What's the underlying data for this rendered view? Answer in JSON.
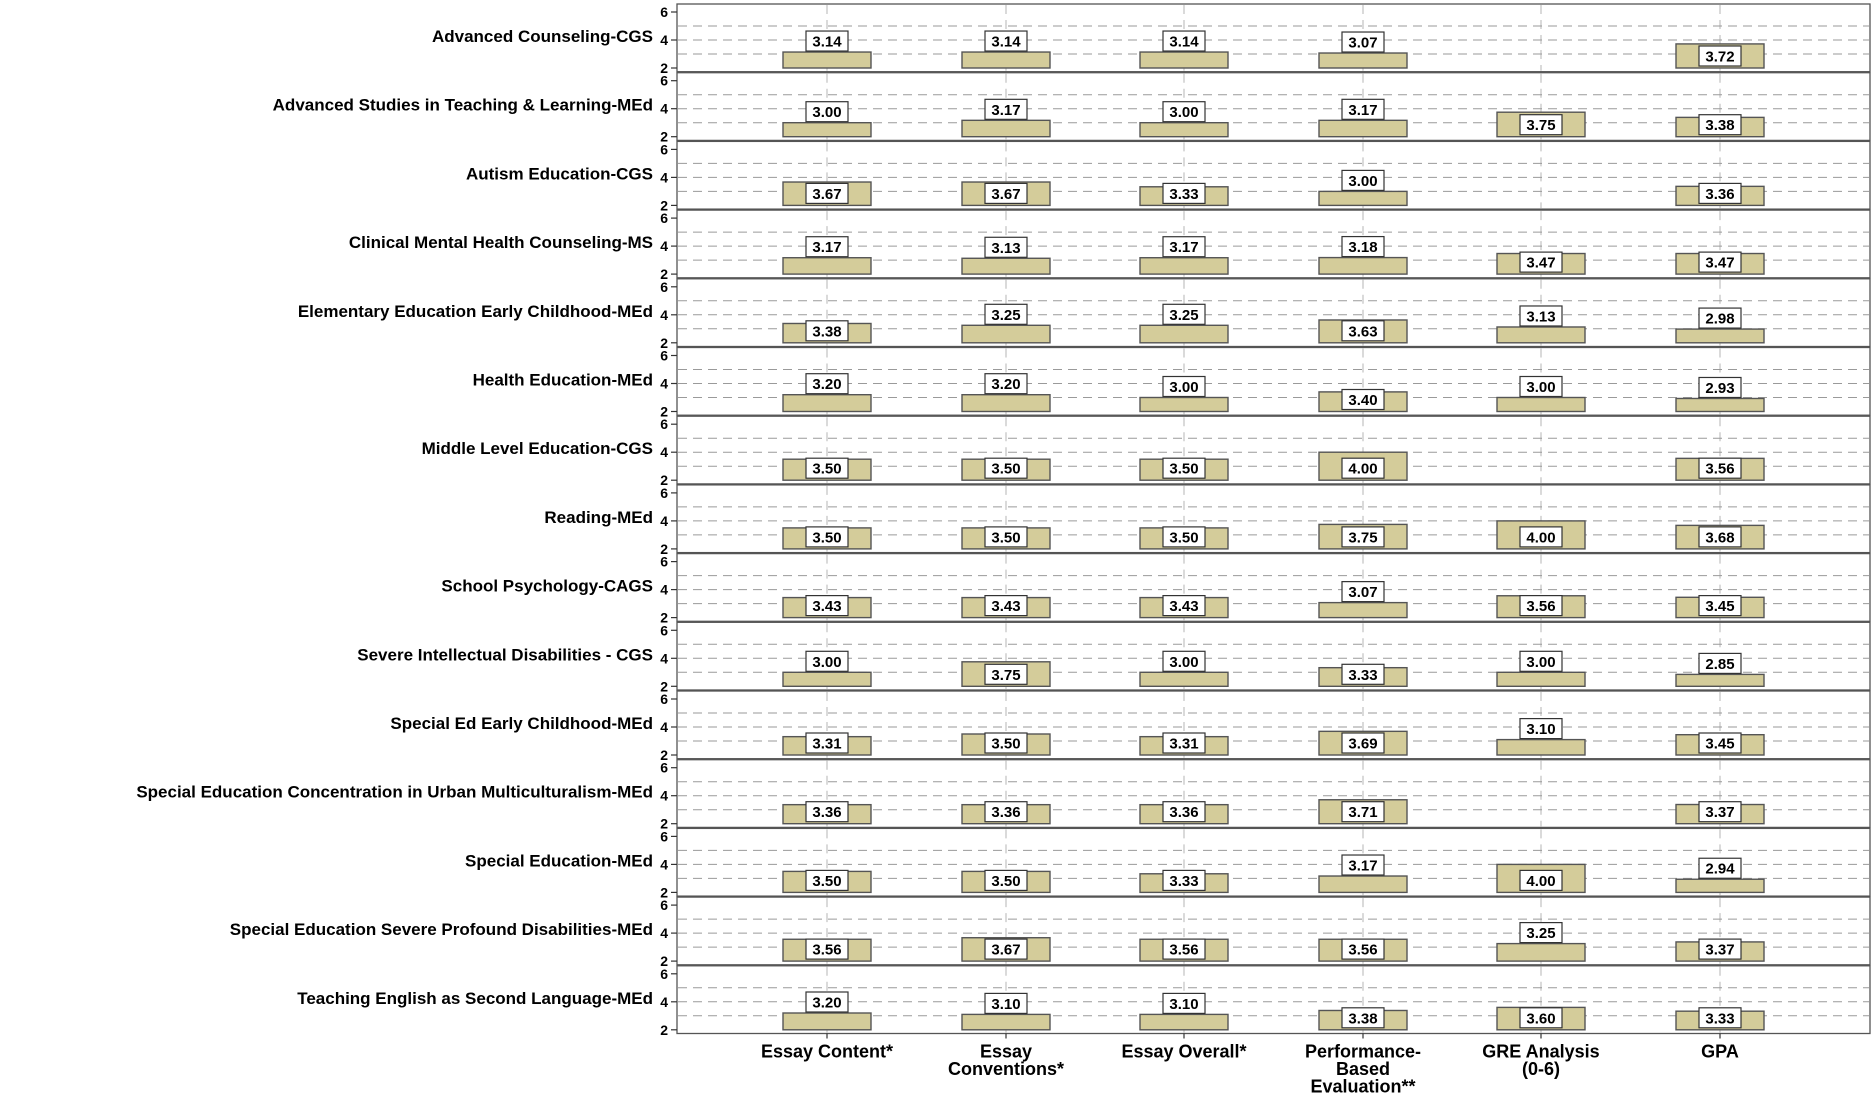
{
  "chart_data": {
    "type": "bar",
    "ylim": [
      2,
      6
    ],
    "yticks": [
      2,
      4,
      6
    ],
    "grid": true,
    "bar_color": "#d4cc9a",
    "categories": [
      "Essay Content*",
      "Essay Conventions*",
      "Essay Overall*",
      "Performance-Based Evaluation**",
      "GRE Analysis (0-6)",
      "GPA"
    ],
    "category_label_lines": [
      [
        "Essay Content*"
      ],
      [
        "Essay",
        "Conventions*"
      ],
      [
        "Essay Overall*"
      ],
      [
        "Performance-",
        "Based",
        "Evaluation**"
      ],
      [
        "GRE Analysis",
        "(0-6)"
      ],
      [
        "GPA"
      ]
    ],
    "panels": [
      {
        "name": "Advanced Counseling-CGS",
        "values": [
          3.14,
          3.14,
          3.14,
          3.07,
          null,
          3.72
        ]
      },
      {
        "name": "Advanced Studies in Teaching & Learning-MEd",
        "values": [
          3.0,
          3.17,
          3.0,
          3.17,
          3.75,
          3.38
        ]
      },
      {
        "name": "Autism Education-CGS",
        "values": [
          3.67,
          3.67,
          3.33,
          3.0,
          null,
          3.36
        ]
      },
      {
        "name": "Clinical Mental Health Counseling-MS",
        "values": [
          3.17,
          3.13,
          3.17,
          3.18,
          3.47,
          3.47
        ]
      },
      {
        "name": "Elementary Education Early Childhood-MEd",
        "values": [
          3.38,
          3.25,
          3.25,
          3.63,
          3.13,
          2.98
        ]
      },
      {
        "name": "Health Education-MEd",
        "values": [
          3.2,
          3.2,
          3.0,
          3.4,
          3.0,
          2.93
        ]
      },
      {
        "name": "Middle Level Education-CGS",
        "values": [
          3.5,
          3.5,
          3.5,
          4.0,
          null,
          3.56
        ]
      },
      {
        "name": "Reading-MEd",
        "values": [
          3.5,
          3.5,
          3.5,
          3.75,
          4.0,
          3.68
        ]
      },
      {
        "name": "School Psychology-CAGS",
        "values": [
          3.43,
          3.43,
          3.43,
          3.07,
          3.56,
          3.45
        ]
      },
      {
        "name": "Severe Intellectual Disabilities - CGS",
        "values": [
          3.0,
          3.75,
          3.0,
          3.33,
          3.0,
          2.85
        ]
      },
      {
        "name": "Special Ed Early Childhood-MEd",
        "values": [
          3.31,
          3.5,
          3.31,
          3.69,
          3.1,
          3.45
        ]
      },
      {
        "name": "Special Education Concentration in Urban Multiculturalism-MEd",
        "values": [
          3.36,
          3.36,
          3.36,
          3.71,
          null,
          3.37
        ]
      },
      {
        "name": "Special Education-MEd",
        "values": [
          3.5,
          3.5,
          3.33,
          3.17,
          4.0,
          2.94
        ]
      },
      {
        "name": "Special Education Severe Profound Disabilities-MEd",
        "values": [
          3.56,
          3.67,
          3.56,
          3.56,
          3.25,
          3.37
        ]
      },
      {
        "name": "Teaching English as Second Language-MEd",
        "values": [
          3.2,
          3.1,
          3.1,
          3.38,
          3.6,
          3.33
        ]
      }
    ]
  }
}
